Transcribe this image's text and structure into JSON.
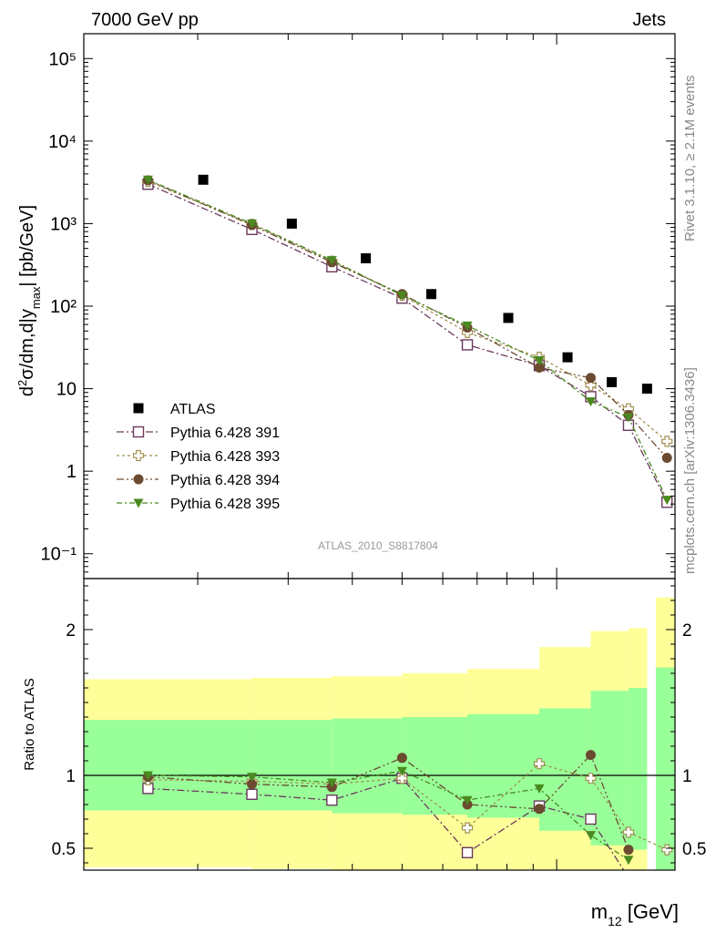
{
  "header": {
    "left": "7000 GeV pp",
    "right": "Jets",
    "side_top": "Rivet 3.1.10, ≥ 2.1M events",
    "side_bottom": "mcplots.cern.ch [arXiv:1306.3436]",
    "analysis": "ATLAS_2010_S8817804"
  },
  "chart_data": [
    {
      "type": "scatter",
      "panel": "main",
      "ylabel": "d²σ/dm,d|y_max| [pb/GeV]",
      "yscale": "log",
      "ylim": [
        0.05,
        200000
      ],
      "yticks": [
        {
          "value": 0.1,
          "label": "10⁻¹"
        },
        {
          "value": 1,
          "label": "1"
        },
        {
          "value": 10,
          "label": "10"
        },
        {
          "value": 100,
          "label": "10²"
        },
        {
          "value": 1000,
          "label": "10³"
        },
        {
          "value": 10000,
          "label": "10⁴"
        },
        {
          "value": 100000,
          "label": "10⁵"
        }
      ],
      "xscale": "log",
      "xlim": [
        120,
        1700
      ],
      "legend_position": "lower-left",
      "series": [
        {
          "name": "ATLAS",
          "color": "#000000",
          "marker": "square-filled",
          "x": [
            205,
            305,
            425,
            570,
            805,
            1050,
            1280,
            1500
          ],
          "y": [
            3400,
            1000,
            380,
            140,
            72,
            24,
            12,
            10
          ]
        },
        {
          "name": "Pythia 6.428 391",
          "color": "#6b3a5e",
          "marker": "square-open",
          "x": [
            160,
            255,
            365,
            500,
            670,
            925,
            1165,
            1380,
            1640
          ],
          "y": [
            3000,
            850,
            300,
            125,
            34,
            19,
            8,
            3.6,
            0.42
          ]
        },
        {
          "name": "Pythia 6.428 393",
          "color": "#a09050",
          "marker": "cross-open",
          "x": [
            160,
            255,
            365,
            500,
            670,
            925,
            1165,
            1380,
            1640
          ],
          "y": [
            3250,
            980,
            350,
            135,
            48,
            24,
            11,
            5.7,
            2.3
          ]
        },
        {
          "name": "Pythia 6.428 394",
          "color": "#6b4a30",
          "marker": "circle-filled",
          "x": [
            160,
            255,
            365,
            500,
            670,
            925,
            1165,
            1380,
            1640
          ],
          "y": [
            3350,
            960,
            340,
            140,
            55,
            18,
            13.5,
            4.8,
            1.45
          ]
        },
        {
          "name": "Pythia 6.428 395",
          "color": "#4a8a20",
          "marker": "triangle-down-filled",
          "x": [
            160,
            255,
            365,
            500,
            670,
            925,
            1165,
            1380,
            1640
          ],
          "y": [
            3400,
            1000,
            360,
            135,
            58,
            22,
            7,
            4.5,
            0.45
          ]
        }
      ]
    },
    {
      "type": "scatter",
      "panel": "ratio",
      "ylabel": "Ratio to ATLAS",
      "xlabel": "m₁₂ [GeV]",
      "ylim": [
        0.35,
        2.35
      ],
      "yticks": [
        {
          "value": 0.5,
          "label": "0.5"
        },
        {
          "value": 1,
          "label": "1"
        },
        {
          "value": 2,
          "label": "2"
        }
      ],
      "bands": [
        {
          "x": [
            120,
            255
          ],
          "inner": [
            0.76,
            1.38
          ],
          "outer": [
            0.37,
            1.66
          ]
        },
        {
          "x": [
            255,
            365
          ],
          "inner": [
            0.76,
            1.38
          ],
          "outer": [
            0.36,
            1.67
          ]
        },
        {
          "x": [
            365,
            500
          ],
          "inner": [
            0.74,
            1.39
          ],
          "outer": [
            0.34,
            1.68
          ]
        },
        {
          "x": [
            500,
            670
          ],
          "inner": [
            0.73,
            1.4
          ],
          "outer": [
            0.33,
            1.7
          ]
        },
        {
          "x": [
            670,
            925
          ],
          "inner": [
            0.71,
            1.42
          ],
          "outer": [
            0.3,
            1.73
          ]
        },
        {
          "x": [
            925,
            1165
          ],
          "inner": [
            0.62,
            1.46
          ],
          "outer": [
            0.2,
            1.88
          ]
        },
        {
          "x": [
            1165,
            1380
          ],
          "inner": [
            0.52,
            1.58
          ],
          "outer": [
            0.1,
            1.99
          ]
        },
        {
          "x": [
            1380,
            1500
          ],
          "inner": [
            0.49,
            1.6
          ],
          "outer": [
            0.05,
            2.01
          ]
        },
        {
          "x": [
            1560,
            1700
          ],
          "inner": [
            0.1,
            1.74
          ],
          "outer": [
            0.1,
            2.22
          ]
        }
      ],
      "series": [
        {
          "name": "Pythia 6.428 391",
          "color": "#6b3a5e",
          "marker": "square-open",
          "x": [
            160,
            255,
            365,
            500,
            670,
            925,
            1165,
            1380,
            1640
          ],
          "y": [
            0.91,
            0.87,
            0.83,
            0.98,
            0.47,
            0.79,
            0.7,
            0.3,
            null
          ]
        },
        {
          "name": "Pythia 6.428 393",
          "color": "#a09050",
          "marker": "cross-open",
          "x": [
            160,
            255,
            365,
            500,
            670,
            925,
            1165,
            1380,
            1640
          ],
          "y": [
            0.97,
            0.96,
            0.94,
            0.98,
            0.64,
            1.08,
            0.98,
            0.61,
            0.49
          ]
        },
        {
          "name": "Pythia 6.428 394",
          "color": "#6b4a30",
          "marker": "circle-filled",
          "x": [
            160,
            255,
            365,
            500,
            670,
            925,
            1165,
            1380,
            1640
          ],
          "y": [
            0.99,
            0.94,
            0.92,
            1.12,
            0.8,
            0.77,
            1.14,
            0.49,
            null
          ]
        },
        {
          "name": "Pythia 6.428 395",
          "color": "#4a8a20",
          "marker": "triangle-down-filled",
          "x": [
            160,
            255,
            365,
            500,
            670,
            925,
            1165,
            1380,
            1640
          ],
          "y": [
            1.0,
            0.99,
            0.95,
            1.03,
            0.83,
            0.91,
            0.59,
            0.42,
            null
          ]
        }
      ]
    }
  ]
}
